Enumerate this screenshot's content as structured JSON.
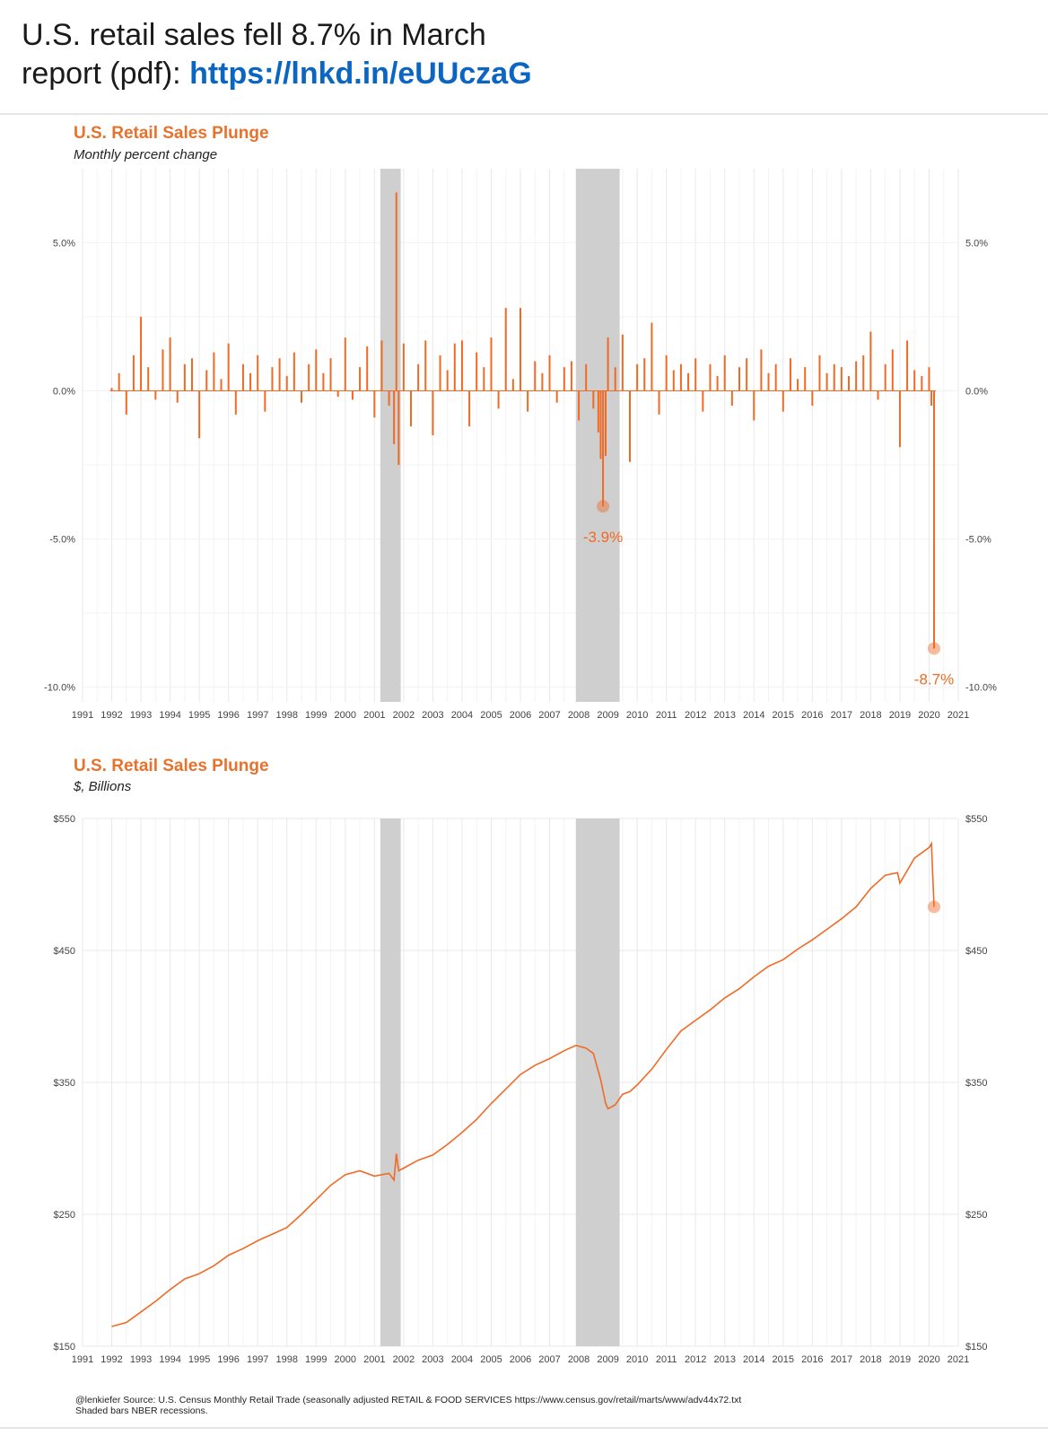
{
  "post": {
    "line1": "U.S. retail sales fell 8.7% in March",
    "line2_prefix": "report (pdf): ",
    "link_text": "https://lnkd.in/eUUczaG"
  },
  "colors": {
    "series": "#f06a25",
    "title": "#e8722c",
    "recession": "#cfcfcf",
    "link": "#0a66c2"
  },
  "chart_data": [
    {
      "type": "bar",
      "title": "U.S. Retail Sales Plunge",
      "subtitle": "Monthly percent change",
      "ylim": [
        -10.5,
        7.5
      ],
      "y_ticks": [
        5,
        0,
        -5,
        -10
      ],
      "y_tick_labels": [
        "5.0%",
        "0.0%",
        "-5.0%",
        "-10.0%"
      ],
      "x_tick_labels": [
        "1991",
        "1992",
        "1993",
        "1994",
        "1995",
        "1996",
        "1997",
        "1998",
        "1999",
        "2000",
        "2001",
        "2002",
        "2003",
        "2004",
        "2005",
        "2006",
        "2007",
        "2008",
        "2009",
        "2010",
        "2011",
        "2012",
        "2013",
        "2014",
        "2015",
        "2016",
        "2017",
        "2018",
        "2019",
        "2020",
        "2021"
      ],
      "xlim": [
        1991,
        2021
      ],
      "recessions": [
        [
          2001.2,
          2001.9
        ],
        [
          2007.9,
          2009.4
        ]
      ],
      "grid": true,
      "annotations": [
        {
          "x": 2008.83,
          "y": -3.9,
          "label": "-3.9%"
        },
        {
          "x": 2020.17,
          "y": -8.7,
          "label": "-8.7%"
        }
      ],
      "x": [
        1992.0,
        1992.25,
        1992.5,
        1992.75,
        1993.0,
        1993.25,
        1993.5,
        1993.75,
        1994.0,
        1994.25,
        1994.5,
        1994.75,
        1995.0,
        1995.25,
        1995.5,
        1995.75,
        1996.0,
        1996.25,
        1996.5,
        1996.75,
        1997.0,
        1997.25,
        1997.5,
        1997.75,
        1998.0,
        1998.25,
        1998.5,
        1998.75,
        1999.0,
        1999.25,
        1999.5,
        1999.75,
        2000.0,
        2000.25,
        2000.5,
        2000.75,
        2001.0,
        2001.25,
        2001.5,
        2001.67,
        2001.75,
        2001.83,
        2002.0,
        2002.25,
        2002.5,
        2002.75,
        2003.0,
        2003.25,
        2003.5,
        2003.75,
        2004.0,
        2004.25,
        2004.5,
        2004.75,
        2005.0,
        2005.25,
        2005.5,
        2005.75,
        2006.0,
        2006.25,
        2006.5,
        2006.75,
        2007.0,
        2007.25,
        2007.5,
        2007.75,
        2008.0,
        2008.25,
        2008.5,
        2008.67,
        2008.75,
        2008.83,
        2008.92,
        2009.0,
        2009.25,
        2009.5,
        2009.75,
        2010.0,
        2010.25,
        2010.5,
        2010.75,
        2011.0,
        2011.25,
        2011.5,
        2011.75,
        2012.0,
        2012.25,
        2012.5,
        2012.75,
        2013.0,
        2013.25,
        2013.5,
        2013.75,
        2014.0,
        2014.25,
        2014.5,
        2014.75,
        2015.0,
        2015.25,
        2015.5,
        2015.75,
        2016.0,
        2016.25,
        2016.5,
        2016.75,
        2017.0,
        2017.25,
        2017.5,
        2017.75,
        2018.0,
        2018.25,
        2018.5,
        2018.75,
        2019.0,
        2019.25,
        2019.5,
        2019.75,
        2020.0,
        2020.08,
        2020.17
      ],
      "values": [
        0.1,
        0.6,
        -0.8,
        1.2,
        2.5,
        0.8,
        -0.3,
        1.4,
        1.8,
        -0.4,
        0.9,
        1.1,
        -1.6,
        0.7,
        1.3,
        0.4,
        1.6,
        -0.8,
        0.9,
        0.6,
        1.2,
        -0.7,
        0.8,
        1.1,
        0.5,
        1.3,
        -0.4,
        0.9,
        1.4,
        0.6,
        1.1,
        -0.2,
        1.8,
        -0.3,
        0.8,
        1.5,
        -0.9,
        1.7,
        -0.5,
        -1.8,
        6.7,
        -2.5,
        1.6,
        -1.2,
        0.9,
        1.7,
        -1.5,
        1.2,
        0.7,
        1.6,
        1.7,
        -1.2,
        1.3,
        0.8,
        1.8,
        -0.6,
        2.8,
        0.4,
        2.8,
        -0.7,
        1.0,
        0.6,
        1.2,
        -0.4,
        0.8,
        1.0,
        -1.0,
        0.9,
        -0.6,
        -1.4,
        -2.3,
        -3.9,
        -2.2,
        1.8,
        0.8,
        1.9,
        -2.4,
        0.9,
        1.1,
        2.3,
        -0.8,
        1.2,
        0.7,
        0.9,
        0.6,
        1.1,
        -0.7,
        0.9,
        0.5,
        1.2,
        -0.5,
        0.8,
        1.1,
        -1.0,
        1.4,
        0.6,
        0.9,
        -0.7,
        1.1,
        0.4,
        0.8,
        -0.5,
        1.2,
        0.6,
        0.9,
        0.8,
        0.5,
        1.0,
        1.2,
        2.0,
        -0.3,
        0.9,
        1.4,
        -1.9,
        1.7,
        0.7,
        0.5,
        0.8,
        -0.5,
        -8.7
      ]
    },
    {
      "type": "line",
      "title": "U.S. Retail Sales Plunge",
      "subtitle": "$, Billions",
      "ylim": [
        150,
        550
      ],
      "y_ticks": [
        550,
        450,
        350,
        250,
        150
      ],
      "y_tick_labels": [
        "$550",
        "$450",
        "$350",
        "$250",
        "$150"
      ],
      "x_tick_labels": [
        "1991",
        "1992",
        "1993",
        "1994",
        "1995",
        "1996",
        "1997",
        "1998",
        "1999",
        "2000",
        "2001",
        "2002",
        "2003",
        "2004",
        "2005",
        "2006",
        "2007",
        "2008",
        "2009",
        "2010",
        "2011",
        "2012",
        "2013",
        "2014",
        "2015",
        "2016",
        "2017",
        "2018",
        "2019",
        "2020",
        "2021"
      ],
      "xlim": [
        1991,
        2021
      ],
      "recessions": [
        [
          2001.2,
          2001.9
        ],
        [
          2007.9,
          2009.4
        ]
      ],
      "grid": true,
      "end_marker": {
        "x": 2020.17,
        "y": 483
      },
      "x": [
        1992.0,
        1992.5,
        1993.0,
        1993.5,
        1994.0,
        1994.5,
        1995.0,
        1995.5,
        1996.0,
        1996.5,
        1997.0,
        1997.5,
        1998.0,
        1998.5,
        1999.0,
        1999.5,
        2000.0,
        2000.5,
        2001.0,
        2001.5,
        2001.67,
        2001.75,
        2001.83,
        2002.0,
        2002.5,
        2003.0,
        2003.5,
        2004.0,
        2004.5,
        2005.0,
        2005.5,
        2006.0,
        2006.5,
        2007.0,
        2007.5,
        2007.9,
        2008.25,
        2008.5,
        2008.75,
        2008.92,
        2009.0,
        2009.25,
        2009.5,
        2009.75,
        2010.0,
        2010.5,
        2011.0,
        2011.5,
        2012.0,
        2012.5,
        2013.0,
        2013.5,
        2014.0,
        2014.5,
        2015.0,
        2015.5,
        2016.0,
        2016.5,
        2017.0,
        2017.5,
        2018.0,
        2018.5,
        2018.92,
        2019.0,
        2019.5,
        2020.0,
        2020.08,
        2020.17
      ],
      "values": [
        165,
        168,
        176,
        184,
        193,
        201,
        205,
        211,
        219,
        224,
        230,
        235,
        240,
        250,
        261,
        272,
        280,
        283,
        279,
        281,
        276,
        296,
        283,
        285,
        291,
        295,
        303,
        312,
        322,
        334,
        345,
        356,
        363,
        368,
        374,
        378,
        376,
        372,
        352,
        334,
        330,
        333,
        341,
        343,
        348,
        360,
        375,
        389,
        397,
        405,
        414,
        421,
        430,
        438,
        443,
        451,
        458,
        466,
        474,
        483,
        497,
        507,
        509,
        501,
        520,
        528,
        531,
        483
      ]
    }
  ],
  "footer": {
    "line1": "@lenkiefer Source: U.S. Census Monthly Retail Trade (seasonally adjusted RETAIL & FOOD SERVICES https://www.census.gov/retail/marts/www/adv44x72.txt",
    "line2": "Shaded bars NBER recessions."
  }
}
